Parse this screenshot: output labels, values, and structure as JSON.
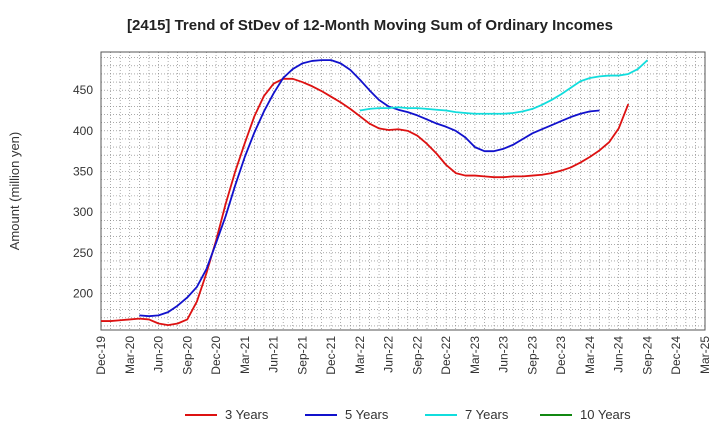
{
  "chart_data": {
    "type": "line",
    "title": "[2415]  Trend of StDev of 12-Month Moving Sum of Ordinary Incomes",
    "xlabel": "",
    "ylabel": "Amount (million yen)",
    "x_tick_labels": [
      "Dec-19",
      "Mar-20",
      "Jun-20",
      "Sep-20",
      "Dec-20",
      "Mar-21",
      "Jun-21",
      "Sep-21",
      "Dec-21",
      "Mar-22",
      "Jun-22",
      "Sep-22",
      "Dec-22",
      "Mar-23",
      "Jun-23",
      "Sep-23",
      "Dec-23",
      "Mar-24",
      "Jun-24",
      "Sep-24",
      "Dec-24",
      "Mar-25"
    ],
    "y_ticks": [
      200,
      250,
      300,
      350,
      400,
      450
    ],
    "ylim": [
      155,
      497
    ],
    "xlim_months": [
      0,
      63
    ],
    "grid": true,
    "legend_position": "bottom",
    "series": [
      {
        "name": "3 Years",
        "color": "#dd1111",
        "x": [
          0,
          1,
          2,
          3,
          4,
          5,
          6,
          7,
          8,
          9,
          10,
          11,
          12,
          13,
          14,
          15,
          16,
          17,
          18,
          19,
          20,
          21,
          22,
          23,
          24,
          25,
          26,
          27,
          28,
          29,
          30,
          31,
          32,
          33,
          34,
          35,
          36,
          37,
          38,
          39,
          40,
          41,
          42,
          43,
          44,
          45,
          46,
          47,
          48,
          49,
          50,
          51,
          52,
          53,
          54,
          55,
          56,
          57,
          58,
          59,
          60
        ],
        "values": [
          166,
          166,
          167,
          168,
          169,
          168,
          163,
          161,
          163,
          168,
          190,
          225,
          265,
          310,
          350,
          385,
          418,
          443,
          458,
          464,
          464,
          460,
          455,
          449,
          442,
          435,
          427,
          418,
          409,
          403,
          401,
          402,
          400,
          394,
          384,
          372,
          358,
          348,
          345,
          345,
          344,
          343,
          343,
          344,
          344,
          345,
          346,
          348,
          351,
          355,
          361,
          368,
          376,
          386,
          403,
          433,
          null,
          null,
          null,
          null,
          null
        ]
      },
      {
        "name": "5 Years",
        "color": "#1111cc",
        "x": [
          0,
          1,
          2,
          3,
          4,
          5,
          6,
          7,
          8,
          9,
          10,
          11,
          12,
          13,
          14,
          15,
          16,
          17,
          18,
          19,
          20,
          21,
          22,
          23,
          24,
          25,
          26,
          27,
          28,
          29,
          30,
          31,
          32,
          33,
          34,
          35,
          36,
          37,
          38,
          39,
          40,
          41,
          42,
          43,
          44,
          45,
          46,
          47,
          48,
          49,
          50,
          51,
          52,
          53,
          54,
          55,
          56,
          57,
          58,
          59,
          60
        ],
        "values": [
          null,
          null,
          null,
          null,
          173,
          172,
          173,
          177,
          185,
          195,
          208,
          230,
          262,
          295,
          333,
          368,
          398,
          424,
          446,
          465,
          476,
          483,
          486,
          487,
          487,
          483,
          475,
          463,
          450,
          438,
          430,
          426,
          423,
          419,
          414,
          409,
          405,
          400,
          392,
          380,
          375,
          375,
          378,
          383,
          390,
          397,
          402,
          407,
          412,
          417,
          421,
          424,
          425,
          null,
          null,
          null,
          null,
          null,
          null,
          null,
          null
        ]
      },
      {
        "name": "7 Years",
        "color": "#11dddd",
        "x": [
          0,
          1,
          2,
          3,
          4,
          5,
          6,
          7,
          8,
          9,
          10,
          11,
          12,
          13,
          14,
          15,
          16,
          17,
          18,
          19,
          20,
          21,
          22,
          23,
          24,
          25,
          26,
          27,
          28,
          29,
          30,
          31,
          32,
          33,
          34,
          35,
          36,
          37,
          38,
          39,
          40,
          41,
          42,
          43,
          44,
          45,
          46,
          47,
          48,
          49,
          50,
          51,
          52,
          53,
          54,
          55,
          56,
          57,
          58,
          59,
          60
        ],
        "values": [
          null,
          null,
          null,
          null,
          null,
          null,
          null,
          null,
          null,
          null,
          null,
          null,
          null,
          null,
          null,
          null,
          null,
          null,
          null,
          null,
          null,
          null,
          null,
          null,
          null,
          null,
          null,
          null,
          null,
          null,
          null,
          null,
          null,
          null,
          null,
          null,
          null,
          null,
          null,
          null,
          null,
          null,
          null,
          null,
          null,
          null,
          null,
          null,
          null,
          null,
          null,
          null,
          null,
          null,
          null,
          null,
          null,
          null,
          null,
          null,
          null
        ]
      },
      {
        "name": "10 Years",
        "color": "#118811",
        "x": [],
        "values": []
      }
    ]
  }
}
